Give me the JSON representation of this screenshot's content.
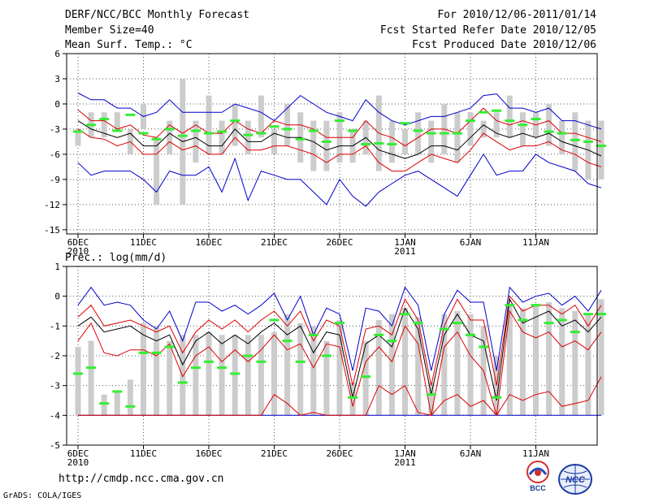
{
  "header": {
    "title": "DERF/NCC/BCC Monthly Forecast",
    "member_size": "Member Size=40",
    "variable1": "Mean Surf. Temp.: °C",
    "period": "For 2010/12/06-2011/01/14",
    "started": "Fcst Started Refer Date 2010/12/05",
    "produced": "Fcst Produced Date 2010/12/06"
  },
  "footer": {
    "url": "http://cmdp.ncc.cma.gov.cn",
    "credit": "GrADS: COLA/IGES",
    "logo_bcc": "BCC",
    "logo_ncc": "NCC"
  },
  "colors": {
    "box": "#cccccc",
    "median": "#33ee33",
    "mean": "#000000",
    "inner": "#dd0000",
    "outer": "#0000cc",
    "axis": "#000000"
  },
  "chart_data": [
    {
      "type": "box-and-line",
      "title": "Mean Surf. Temp.: °C",
      "ylim": [
        -15.5,
        6
      ],
      "yticks": [
        6,
        3,
        0,
        -3,
        -6,
        -9,
        -12,
        -15
      ],
      "grid": true,
      "xlabels": [
        {
          "day": 0,
          "label": "6DEC",
          "sub": "2010"
        },
        {
          "day": 5,
          "label": "11DEC"
        },
        {
          "day": 10,
          "label": "16DEC"
        },
        {
          "day": 15,
          "label": "21DEC"
        },
        {
          "day": 20,
          "label": "26DEC"
        },
        {
          "day": 25,
          "label": "1JAN",
          "sub": "2011"
        },
        {
          "day": 30,
          "label": "6JAN"
        },
        {
          "day": 35,
          "label": "11JAN"
        }
      ],
      "box_low": [
        -5,
        -4,
        -4,
        -3,
        -6,
        -3,
        -12,
        -6,
        -12,
        -7,
        -6,
        -6,
        -5,
        -6,
        -4,
        -6,
        -5,
        -7,
        -8,
        -8,
        -7,
        -7,
        -6,
        -8,
        -7,
        -6,
        -6,
        -7,
        -6,
        -7,
        -5,
        -4,
        -4,
        -4,
        -5,
        -4,
        -5,
        -6,
        -8,
        -9,
        -9
      ],
      "box_high": [
        -3,
        -1,
        -1,
        -1,
        -3,
        0,
        -4,
        -2,
        3,
        -2,
        1,
        -2,
        0,
        -2,
        1,
        -3,
        0,
        -1,
        -2,
        -2,
        -1,
        -3,
        -2,
        1,
        -2,
        -3,
        -1,
        -2,
        0,
        -1,
        -1,
        -2,
        -1,
        1,
        -1,
        -1,
        0,
        -2,
        -1,
        -2,
        -2
      ],
      "median": [
        -3.3,
        -2.5,
        -1.8,
        -3.2,
        -1.3,
        -3.5,
        -4.2,
        -3,
        -3.8,
        -3.2,
        -3.5,
        -3.3,
        -2,
        -3.7,
        -3.5,
        -2.7,
        -3,
        -4.2,
        -3.2,
        -4.5,
        -2,
        -3.2,
        -4.8,
        -4.7,
        -4.8,
        -2.3,
        -3.2,
        -3.5,
        -3.5,
        -3.5,
        -2,
        -1,
        -0.8,
        -2,
        -2.5,
        -1.8,
        -3.3,
        -3.5,
        -4.3,
        -4.5,
        -5
      ],
      "series": [
        {
          "name": "upper_outer",
          "color": "outer",
          "values": [
            1.3,
            0.5,
            0.5,
            -0.5,
            -0.5,
            -1.5,
            -1,
            0.5,
            -1,
            -1,
            -1,
            -1,
            0,
            -0.5,
            -1,
            -2,
            -0.5,
            1,
            0,
            -1,
            -1.5,
            -2,
            0.5,
            -1,
            -2,
            -2.5,
            -2,
            -1.5,
            -1.5,
            -1,
            -0.5,
            1,
            1.2,
            -0.5,
            -0.5,
            -1,
            -0.5,
            -2,
            -2,
            -2.5,
            -3
          ]
        },
        {
          "name": "upper_inner",
          "color": "inner",
          "values": [
            -0.7,
            -2,
            -2,
            -3,
            -2.5,
            -3.7,
            -4,
            -2.5,
            -3.5,
            -2.5,
            -3.5,
            -3.5,
            -2,
            -3,
            -3.5,
            -2,
            -2.5,
            -2.5,
            -3,
            -4,
            -4,
            -4,
            -2,
            -3.5,
            -4,
            -5,
            -4,
            -3,
            -3,
            -3.5,
            -2,
            -0.5,
            -2,
            -2.5,
            -2,
            -2.5,
            -2,
            -3.5,
            -3.5,
            -4,
            -4.5
          ]
        },
        {
          "name": "mean",
          "color": "mean",
          "values": [
            -2,
            -3,
            -3.5,
            -4,
            -3.5,
            -5,
            -5,
            -3.5,
            -4.5,
            -4,
            -5,
            -5,
            -3,
            -4.5,
            -4.5,
            -3.5,
            -4,
            -4,
            -4.5,
            -5.5,
            -5,
            -5,
            -4,
            -5.5,
            -6,
            -6.5,
            -6,
            -5,
            -5,
            -5.5,
            -4,
            -2.5,
            -3.5,
            -4,
            -3.5,
            -4,
            -3.5,
            -4.5,
            -5,
            -5.5,
            -6.2
          ]
        },
        {
          "name": "lower_inner",
          "color": "inner",
          "values": [
            -3,
            -4,
            -4.2,
            -5,
            -4.5,
            -6,
            -6,
            -4.5,
            -5.5,
            -5,
            -6,
            -6,
            -4,
            -5.5,
            -5.5,
            -5,
            -5,
            -5.5,
            -6,
            -7,
            -6,
            -6,
            -5,
            -7,
            -8,
            -8,
            -7,
            -6,
            -6.5,
            -7,
            -5.5,
            -3.5,
            -4.5,
            -5.5,
            -5,
            -5,
            -4.5,
            -5.5,
            -6,
            -7,
            -7.5
          ]
        },
        {
          "name": "lower_outer",
          "color": "outer",
          "values": [
            -7,
            -8.5,
            -8,
            -8,
            -8,
            -9,
            -10.5,
            -8,
            -8.5,
            -8.5,
            -7.5,
            -10.5,
            -6.5,
            -11.5,
            -8,
            -8.5,
            -9,
            -9,
            -10.5,
            -12,
            -9,
            -11,
            -12.2,
            -10.5,
            -9.5,
            -8.5,
            -8,
            -9,
            -10,
            -11,
            -8.5,
            -6,
            -8.5,
            -8,
            -8,
            -6,
            -7,
            -7.5,
            -8,
            -9.5,
            -10
          ]
        }
      ]
    },
    {
      "type": "box-and-line",
      "title": "Prec.: log(mm/d)",
      "ylim": [
        -5,
        1
      ],
      "yticks": [
        1,
        0,
        -1,
        -2,
        -3,
        -4,
        -5
      ],
      "grid": true,
      "xlabels": [
        {
          "day": 0,
          "label": "6DEC",
          "sub": "2010"
        },
        {
          "day": 5,
          "label": "11DEC"
        },
        {
          "day": 10,
          "label": "16DEC"
        },
        {
          "day": 15,
          "label": "21DEC"
        },
        {
          "day": 20,
          "label": "26DEC"
        },
        {
          "day": 25,
          "label": "1JAN",
          "sub": "2011"
        },
        {
          "day": 30,
          "label": "6JAN"
        },
        {
          "day": 35,
          "label": "11JAN"
        }
      ],
      "box_low": [
        -4,
        -4,
        -4,
        -4,
        -4,
        -4,
        -4,
        -4,
        -4,
        -4,
        -4,
        -4,
        -4,
        -4,
        -4,
        -4,
        -4,
        -4,
        -4,
        -4,
        -4,
        -4,
        -4,
        -4,
        -4,
        -4,
        -4,
        -4,
        -4,
        -4,
        -4,
        -4,
        -4,
        -4,
        -4,
        -4,
        -4,
        -4,
        -4,
        -4,
        -4
      ],
      "box_high": [
        -1.7,
        -1.5,
        -3.3,
        -3.2,
        -2.8,
        -0.9,
        -1,
        -1.5,
        -1.3,
        -1.3,
        -1.2,
        -1.3,
        -1.3,
        -1.3,
        -1.3,
        -1.2,
        -0.6,
        -0.9,
        -1,
        -1.5,
        -0.8,
        -2.9,
        -1.5,
        -0.8,
        -0.6,
        -0.4,
        -0.7,
        -2.9,
        -0.6,
        -0.5,
        -0.6,
        -1,
        -2,
        -0.3,
        -0.4,
        -0.3,
        -0.2,
        -0.4,
        -0.5,
        -0.6,
        -0.1
      ],
      "median": [
        -2.6,
        -2.4,
        -3.6,
        -3.2,
        -3.7,
        -1.9,
        -1.9,
        -1.7,
        -2.9,
        -2.4,
        -2.2,
        -2.4,
        -2.6,
        -2,
        -2.2,
        -0.8,
        -1.5,
        -2.2,
        -1.3,
        -2,
        -0.9,
        -3.4,
        -2.7,
        -1.3,
        -1.5,
        -0.6,
        -0.9,
        -3.3,
        -1.1,
        -0.9,
        -1.3,
        -1.7,
        -3.4,
        -0.3,
        -0.8,
        -0.3,
        -0.9,
        -0.8,
        -1.2,
        -0.6,
        -0.6
      ],
      "series": [
        {
          "name": "upper_outer",
          "color": "outer",
          "values": [
            -0.3,
            0.3,
            -0.3,
            -0.2,
            -0.3,
            -0.8,
            -1.1,
            -0.5,
            -1.5,
            -0.2,
            -0.2,
            -0.5,
            -0.3,
            -0.6,
            -0.3,
            0.1,
            -0.8,
            0,
            -1.3,
            -0.4,
            -0.6,
            -2.5,
            -0.4,
            -0.5,
            -1,
            0.3,
            -0.3,
            -2.5,
            -0.6,
            0.2,
            -0.2,
            -0.2,
            -2.5,
            0.3,
            -0.2,
            0,
            0.1,
            -0.3,
            0,
            -0.5,
            0.2
          ]
        },
        {
          "name": "upper_inner",
          "color": "inner",
          "values": [
            -0.7,
            -0.3,
            -1,
            -0.9,
            -0.8,
            -1,
            -1.2,
            -1,
            -1.9,
            -1.2,
            -0.8,
            -1.1,
            -0.8,
            -1.2,
            -0.8,
            -0.5,
            -1,
            -0.5,
            -1.5,
            -0.8,
            -1,
            -3,
            -1.1,
            -1,
            -1.3,
            -0.1,
            -0.8,
            -3,
            -1,
            -0.1,
            -0.8,
            -0.8,
            -3,
            0,
            -0.5,
            -0.3,
            -0.3,
            -0.6,
            -0.3,
            -1,
            -0.3
          ]
        },
        {
          "name": "mean",
          "color": "mean",
          "values": [
            -1,
            -0.7,
            -1.2,
            -1.1,
            -1,
            -1.3,
            -1.5,
            -1.3,
            -2.3,
            -1.5,
            -1.2,
            -1.6,
            -1.3,
            -1.6,
            -1.2,
            -0.9,
            -1.3,
            -1,
            -1.9,
            -1.2,
            -1.3,
            -3.4,
            -1.6,
            -1.3,
            -1.7,
            -0.4,
            -1.1,
            -3.3,
            -1.3,
            -0.6,
            -1.3,
            -1.5,
            -3.5,
            -0.1,
            -0.9,
            -0.7,
            -0.5,
            -1,
            -0.8,
            -1.2,
            -0.7
          ]
        },
        {
          "name": "lower_inner",
          "color": "inner",
          "values": [
            -1.5,
            -0.9,
            -1.9,
            -2,
            -1.8,
            -1.8,
            -2,
            -1.6,
            -2.7,
            -2,
            -1.7,
            -2.2,
            -1.8,
            -2.2,
            -1.8,
            -1.3,
            -1.8,
            -1.6,
            -2.4,
            -1.6,
            -1.7,
            -3.7,
            -2.2,
            -1.7,
            -2.2,
            -1,
            -1.6,
            -4,
            -1.7,
            -1.2,
            -2,
            -2.5,
            -4,
            -0.5,
            -1.2,
            -1.4,
            -1.2,
            -1.7,
            -1.5,
            -1.8,
            -1.2
          ]
        },
        {
          "name": "lower_outer",
          "color": "outer",
          "values": [
            -4,
            -4,
            -4,
            -4,
            -4,
            -4,
            -4,
            -4,
            -4,
            -4,
            -4,
            -4,
            -4,
            -4,
            -4,
            -4,
            -4,
            -4,
            -4,
            -4,
            -4,
            -4,
            -4,
            -4,
            -4,
            -4,
            -4,
            -4,
            -4,
            -4,
            -4,
            -4,
            -4,
            -4,
            -4,
            -4,
            -4,
            -4,
            -4,
            -4,
            -4
          ]
        },
        {
          "name": "lower_extra",
          "color": "inner",
          "values": [
            -4,
            -4,
            -4,
            -4,
            -4,
            -4,
            -4,
            -4,
            -4,
            -4,
            -4,
            -4,
            -4,
            -4,
            -4,
            -3.3,
            -3.6,
            -4,
            -3.9,
            -4,
            -4,
            -4,
            -4,
            -3,
            -3.3,
            -3,
            -3.9,
            -4,
            -3.5,
            -3.3,
            -3.7,
            -3.5,
            -4,
            -3.3,
            -3.5,
            -3.3,
            -3.2,
            -3.7,
            -3.6,
            -3.5,
            -2.7
          ]
        }
      ]
    }
  ]
}
